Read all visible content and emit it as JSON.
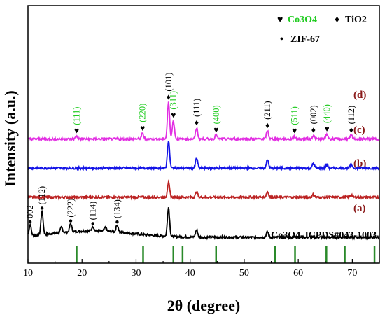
{
  "chart_data": {
    "type": "line",
    "xlabel": "2θ (degree)",
    "ylabel": "Intensity (a.u.)",
    "xlim": [
      10,
      75
    ],
    "xticks": [
      10,
      20,
      30,
      40,
      50,
      60,
      70
    ],
    "grid": false,
    "legend": {
      "placement": "top-right",
      "entries": [
        {
          "symbol": "♥",
          "label": "Co3O4",
          "color": "#22cc22"
        },
        {
          "symbol": "♦",
          "label": "TiO2",
          "color": "#000000"
        },
        {
          "symbol": "•",
          "label": "ZIF-67",
          "color": "#000000"
        }
      ]
    },
    "series": [
      {
        "name": "(a)",
        "color": "#000000",
        "offset": 1.0,
        "peaks": [
          [
            10.4,
            0.6
          ],
          [
            12.6,
            1.3
          ],
          [
            16.2,
            0.3
          ],
          [
            17.9,
            0.45
          ],
          [
            22.0,
            0.25
          ],
          [
            24.3,
            0.2
          ],
          [
            26.5,
            0.4
          ],
          [
            36.0,
            1.6
          ],
          [
            41.2,
            0.4
          ],
          [
            54.3,
            0.3
          ]
        ]
      },
      {
        "name": "(b)",
        "color": "#bb2222",
        "offset": 3.2,
        "peaks": [
          [
            36.0,
            0.8
          ],
          [
            41.2,
            0.3
          ],
          [
            54.3,
            0.3
          ],
          [
            62.8,
            0.15
          ],
          [
            69.8,
            0.15
          ]
        ]
      },
      {
        "name": "(c)",
        "color": "#1414e6",
        "offset": 4.8,
        "peaks": [
          [
            36.0,
            1.5
          ],
          [
            41.2,
            0.55
          ],
          [
            54.3,
            0.45
          ],
          [
            62.8,
            0.25
          ],
          [
            65.3,
            0.2
          ],
          [
            69.8,
            0.2
          ]
        ]
      },
      {
        "name": "(d)",
        "color": "#e22ee2",
        "offset": 6.4,
        "peaks": [
          [
            19.0,
            0.15
          ],
          [
            31.2,
            0.3
          ],
          [
            36.0,
            2.0
          ],
          [
            36.9,
            1.0
          ],
          [
            41.2,
            0.6
          ],
          [
            44.8,
            0.2
          ],
          [
            54.3,
            0.45
          ],
          [
            59.3,
            0.15
          ],
          [
            62.8,
            0.2
          ],
          [
            65.3,
            0.25
          ],
          [
            69.8,
            0.2
          ]
        ]
      }
    ],
    "annotations": [
      {
        "text": "(111)",
        "x": 19.0,
        "type": "Co3O4",
        "color": "#22cc22"
      },
      {
        "text": "(220)",
        "x": 31.2,
        "type": "Co3O4",
        "color": "#22cc22"
      },
      {
        "text": "(101)",
        "x": 36.0,
        "type": "TiO2",
        "color": "#000000"
      },
      {
        "text": "(311)",
        "x": 36.9,
        "type": "Co3O4",
        "color": "#22cc22"
      },
      {
        "text": "(111)",
        "x": 41.2,
        "type": "TiO2",
        "color": "#000000"
      },
      {
        "text": "(400)",
        "x": 44.8,
        "type": "Co3O4",
        "color": "#22cc22"
      },
      {
        "text": "(211)",
        "x": 54.3,
        "type": "TiO2",
        "color": "#000000"
      },
      {
        "text": "(511)",
        "x": 59.3,
        "type": "Co3O4",
        "color": "#22cc22"
      },
      {
        "text": "(002)",
        "x": 62.8,
        "type": "TiO2",
        "color": "#000000"
      },
      {
        "text": "(440)",
        "x": 65.3,
        "type": "Co3O4",
        "color": "#22cc22"
      },
      {
        "text": "(112)",
        "x": 69.8,
        "type": "TiO2",
        "color": "#000000"
      }
    ],
    "zif_annotations": [
      {
        "text": "002",
        "x": 10.4
      },
      {
        "text": "(112)",
        "x": 12.6
      },
      {
        "text": "(222)",
        "x": 17.9
      },
      {
        "text": "(114)",
        "x": 22.0
      },
      {
        "text": "(134)",
        "x": 26.5
      }
    ],
    "reference": {
      "label": "Co3O4-JCPDS#043-1003",
      "color": "#2a8a2a",
      "positions": [
        19.0,
        31.3,
        36.9,
        38.6,
        44.8,
        55.7,
        59.4,
        65.2,
        68.6,
        74.1
      ]
    }
  }
}
